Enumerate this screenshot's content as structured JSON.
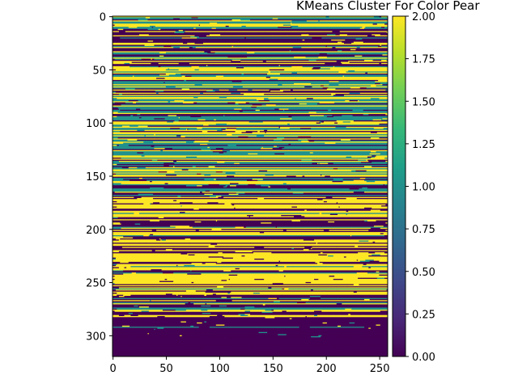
{
  "chart_data": {
    "type": "heatmap",
    "title": "KMeans Cluster For Color Pear",
    "xlabel": "",
    "ylabel": "",
    "image_shape": {
      "rows": 320,
      "cols": 258
    },
    "xlim": [
      -0.5,
      257.5
    ],
    "ylim": [
      319.5,
      -0.5
    ],
    "x_ticks": [
      0,
      50,
      100,
      150,
      200,
      250
    ],
    "y_ticks": [
      0,
      50,
      100,
      150,
      200,
      250,
      300
    ],
    "clusters": [
      0,
      1,
      2
    ],
    "colormap": "viridis",
    "cluster_colors": {
      "0": "#440154",
      "1": "#21918c",
      "2": "#fde725"
    },
    "colorbar": {
      "range": [
        0.0,
        2.0
      ],
      "ticks": [
        "0.00",
        "0.25",
        "0.50",
        "0.75",
        "1.00",
        "1.25",
        "1.50",
        "1.75",
        "2.00"
      ]
    },
    "grid": false,
    "regions": [
      {
        "rows": [
          0,
          12
        ],
        "description": "dense mixture of clusters 2, 1 and 0",
        "mix": [
          0.3,
          0.35,
          0.35
        ]
      },
      {
        "rows": [
          12,
          50
        ],
        "description": "alternating bands mostly cluster 0 and 2",
        "mix": [
          0.5,
          0.15,
          0.35
        ]
      },
      {
        "rows": [
          50,
          170
        ],
        "description": "mostly clusters 2 and 1 with some 0",
        "mix": [
          0.25,
          0.35,
          0.4
        ]
      },
      {
        "rows": [
          170,
          265
        ],
        "description": "alternating bands of clusters 2 and 0",
        "mix": [
          0.45,
          0.05,
          0.5
        ]
      },
      {
        "rows": [
          265,
          302
        ],
        "description": "mostly cluster 0 with some 2 and 1",
        "mix": [
          0.65,
          0.15,
          0.2
        ]
      },
      {
        "rows": [
          302,
          320
        ],
        "description": "cluster 0",
        "mix": [
          1.0,
          0.0,
          0.0
        ]
      }
    ]
  }
}
